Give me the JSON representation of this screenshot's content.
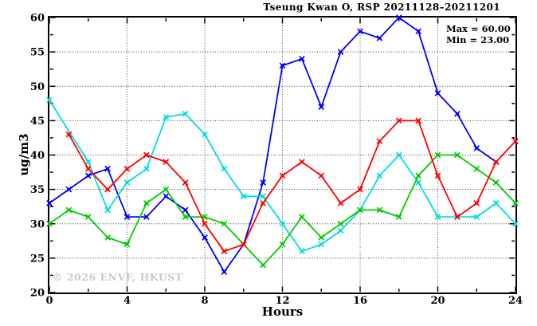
{
  "title": "Tseung Kwan O, RSP 20211128–20211201",
  "legend": {
    "max_label": "Max = 60.00",
    "min_label": "Min = 23.00"
  },
  "watermark": "© 2026 ENVF, HKUST",
  "chart_data": {
    "type": "line",
    "title": "Tseung Kwan O, RSP 20211128–20211201",
    "xlabel": "Hours",
    "ylabel": "ug/m3",
    "xlim": [
      0,
      24
    ],
    "ylim": [
      20,
      60
    ],
    "x_major_ticks": [
      0,
      4,
      8,
      12,
      16,
      20,
      24
    ],
    "x_minor_step": 2,
    "y_major_ticks": [
      20,
      25,
      30,
      35,
      40,
      45,
      50,
      55,
      60
    ],
    "y_minor_step": 2.5,
    "grid": true,
    "legend_position": "top-right-inside",
    "stats": {
      "max": 60.0,
      "min": 23.0
    },
    "x": [
      0,
      1,
      2,
      3,
      4,
      5,
      6,
      7,
      8,
      9,
      10,
      11,
      12,
      13,
      14,
      15,
      16,
      17,
      18,
      19,
      20,
      21,
      22,
      23,
      24
    ],
    "series": [
      {
        "name": "series-blue",
        "color": "#0000ff",
        "values": [
          33,
          35,
          37,
          38,
          31,
          31,
          34,
          32,
          28,
          23,
          27,
          36,
          53,
          54,
          47,
          55,
          58,
          57,
          60,
          58,
          49,
          46,
          41,
          39,
          null
        ]
      },
      {
        "name": "series-cyan",
        "color": "#00dddd",
        "values": [
          48,
          null,
          39,
          32,
          36,
          38,
          45.5,
          46,
          43,
          38,
          34,
          34,
          30,
          26,
          27,
          29,
          32,
          37,
          40,
          36,
          31,
          31,
          31,
          33,
          30
        ]
      },
      {
        "name": "series-green",
        "color": "#00cc00",
        "values": [
          30,
          32,
          31,
          28,
          27,
          33,
          35,
          31,
          31,
          30,
          27,
          24,
          27,
          31,
          28,
          30,
          32,
          32,
          31,
          37,
          40,
          40,
          38,
          36,
          33
        ]
      },
      {
        "name": "series-red",
        "color": "#ff0000",
        "values": [
          null,
          43,
          38,
          35,
          38,
          40,
          39,
          36,
          30,
          26,
          27,
          33,
          37,
          39,
          37,
          33,
          35,
          42,
          45,
          45,
          37,
          31,
          33,
          39,
          42
        ]
      }
    ]
  }
}
